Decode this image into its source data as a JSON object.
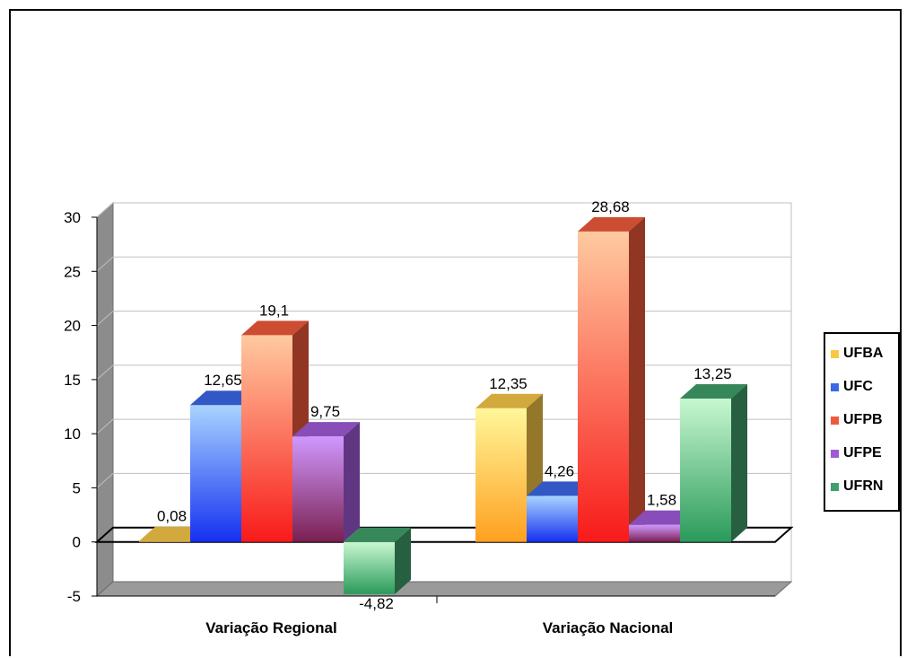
{
  "chart_data": {
    "type": "bar",
    "categories": [
      "Variação Regional",
      "Variação Nacional"
    ],
    "series": [
      {
        "name": "UFBA",
        "values": [
          0.08,
          12.35
        ],
        "labels": [
          "0,08",
          "12,35"
        ],
        "color": "#f7c748"
      },
      {
        "name": "UFC",
        "values": [
          12.65,
          4.26
        ],
        "labels": [
          "12,65",
          "4,26"
        ],
        "color": "#3a68e8"
      },
      {
        "name": "UFPB",
        "values": [
          19.1,
          28.68
        ],
        "labels": [
          "19,1",
          "28,68"
        ],
        "color": "#f05a3a"
      },
      {
        "name": "UFPE",
        "values": [
          9.75,
          1.58
        ],
        "labels": [
          "9,75",
          "1,58"
        ],
        "color": "#a05ad8"
      },
      {
        "name": "UFRN",
        "values": [
          -4.82,
          13.25
        ],
        "labels": [
          "-4,82",
          "13,25"
        ],
        "color": "#3fa06a"
      }
    ],
    "yticks": [
      "30",
      "25",
      "20",
      "15",
      "10",
      "5",
      "0",
      "-5"
    ],
    "ylim": [
      -5,
      30
    ],
    "grid": true,
    "legend": "right"
  }
}
